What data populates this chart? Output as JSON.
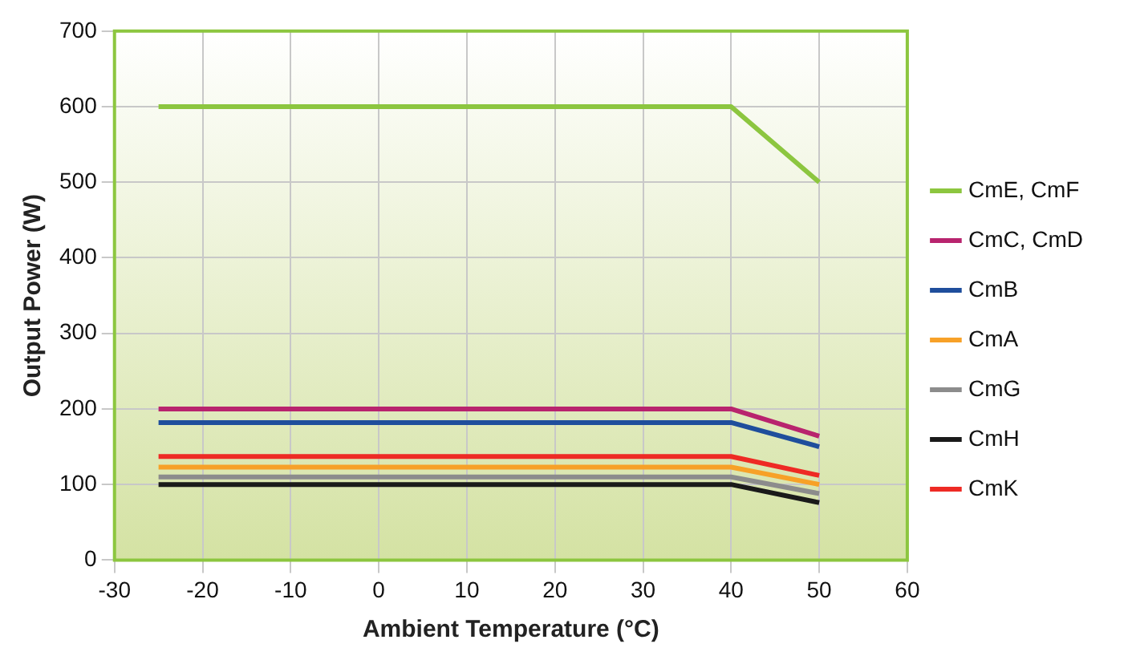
{
  "chart_data": {
    "type": "line",
    "xlabel": "Ambient Temperature (°C)",
    "ylabel": "Output Power (W)",
    "x": [
      -25,
      40,
      50
    ],
    "series": [
      {
        "name": "CmE, CmF",
        "color": "#8cc63f",
        "values": [
          600,
          600,
          500
        ]
      },
      {
        "name": "CmC, CmD",
        "color": "#b8246e",
        "values": [
          200,
          200,
          164
        ]
      },
      {
        "name": "CmB",
        "color": "#1f4e9c",
        "values": [
          182,
          182,
          150
        ]
      },
      {
        "name": "CmA",
        "color": "#f7a128",
        "values": [
          123,
          123,
          100
        ]
      },
      {
        "name": "CmG",
        "color": "#8c8c8c",
        "values": [
          110,
          110,
          88
        ]
      },
      {
        "name": "CmH",
        "color": "#1a1a1a",
        "values": [
          100,
          100,
          76
        ]
      },
      {
        "name": "CmK",
        "color": "#ee2a24",
        "values": [
          137,
          137,
          112
        ]
      }
    ],
    "xlim": [
      -30,
      60
    ],
    "xticks": [
      -30,
      -20,
      -10,
      0,
      10,
      20,
      30,
      40,
      50,
      60
    ],
    "ylim": [
      0,
      700
    ],
    "yticks": [
      0,
      100,
      200,
      300,
      400,
      500,
      600,
      700
    ],
    "grid": true,
    "legend": "right",
    "marker": "none",
    "line_style": "solid"
  }
}
